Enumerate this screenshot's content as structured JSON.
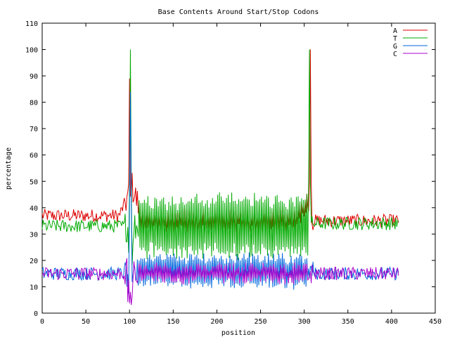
{
  "chart_data": {
    "type": "line",
    "title": "Base Contents Around Start/Stop Codons",
    "xlabel": "position",
    "ylabel": "percentage",
    "xlim": [
      0,
      450
    ],
    "ylim": [
      0,
      110
    ],
    "x_ticks": [
      0,
      50,
      100,
      150,
      200,
      250,
      300,
      350,
      400,
      450
    ],
    "y_ticks": [
      0,
      10,
      20,
      30,
      40,
      50,
      60,
      70,
      80,
      90,
      100,
      110
    ],
    "x_tick_labels": [
      "0",
      "50",
      "100",
      "150",
      "200",
      "250",
      "300",
      "350",
      "400",
      "450"
    ],
    "y_tick_labels": [
      "0",
      "10",
      "20",
      "30",
      "40",
      "50",
      "60",
      "70",
      "80",
      "90",
      "100",
      "110"
    ],
    "legend_position": "top-right",
    "grid": false,
    "x_range_plotted": [
      0,
      408
    ],
    "series": [
      {
        "name": "A",
        "color": "#dd0000",
        "baseline_pre": 37,
        "baseline_mid": 35,
        "baseline_post": 35,
        "oscillation_mid": 4,
        "peaks": [
          {
            "x": 100,
            "y": 89
          },
          {
            "x": 307,
            "y": 100
          }
        ],
        "trend_notes": [
          {
            "x": 95,
            "y": 44
          },
          {
            "x": 105,
            "y": 50
          },
          {
            "x": 300,
            "y": 44
          }
        ]
      },
      {
        "name": "T",
        "color": "#00aa00",
        "baseline_pre": 33,
        "baseline_mid": 33,
        "baseline_post": 34,
        "oscillation_mid": 12,
        "peaks": [
          {
            "x": 101,
            "y": 100
          },
          {
            "x": 306,
            "y": 100
          }
        ],
        "trend_notes": [
          {
            "x": 190,
            "y": 45
          },
          {
            "x": 190,
            "y": 20
          }
        ]
      },
      {
        "name": "G",
        "color": "#0066dd",
        "baseline_pre": 15,
        "baseline_mid": 16,
        "baseline_post": 15,
        "oscillation_mid": 6,
        "peaks": [
          {
            "x": 101,
            "y": 84
          }
        ],
        "trend_notes": [
          {
            "x": 200,
            "y": 25
          },
          {
            "x": 200,
            "y": 9
          }
        ]
      },
      {
        "name": "C",
        "color": "#aa00cc",
        "baseline_pre": 15,
        "baseline_mid": 15,
        "baseline_post": 15,
        "oscillation_mid": 3,
        "peaks": [],
        "trend_notes": [
          {
            "x": 101,
            "y": 3
          }
        ]
      }
    ]
  }
}
